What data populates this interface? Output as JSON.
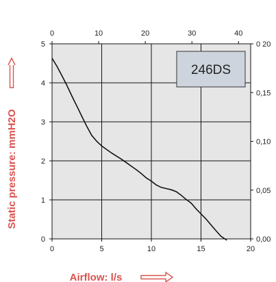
{
  "chart_data": {
    "type": "line",
    "model_label": "246DS",
    "xlabel": "Airflow: l/s",
    "ylabel": "Static pressure: mmH2O",
    "x_bottom": {
      "ticks": [
        0,
        5,
        10,
        15,
        20
      ],
      "labels": [
        "0",
        "5",
        "10",
        "15",
        "20"
      ],
      "range": [
        0,
        20
      ]
    },
    "x_top": {
      "ticks": [
        0,
        10,
        20,
        30,
        40
      ],
      "labels": [
        "0",
        "10",
        "20",
        "30",
        "40"
      ],
      "range": [
        0,
        42.6
      ]
    },
    "y_left": {
      "ticks": [
        0,
        1,
        2,
        3,
        4,
        5
      ],
      "labels": [
        "0",
        "1",
        "2",
        "3",
        "4",
        "5"
      ],
      "range": [
        0,
        5
      ]
    },
    "y_right": {
      "ticks": [
        0,
        0.05,
        0.1,
        0.15,
        0.2
      ],
      "labels": [
        "0,00",
        "0,05",
        "0,10",
        "0,15",
        "0 20"
      ],
      "range": [
        0,
        0.2
      ]
    },
    "grid": true,
    "series": [
      {
        "x": [
          0,
          0.5,
          1.0,
          1.5,
          2.0,
          2.5,
          3.0,
          3.5,
          4.0,
          4.5,
          5.0,
          5.5,
          6.0,
          6.5,
          7.0,
          7.5,
          8.0,
          8.5,
          9.0,
          9.5,
          10.0,
          10.5,
          11.0,
          11.5,
          12.0,
          12.5,
          13.0,
          13.5,
          14.0,
          14.5,
          15.0,
          15.5,
          16.0,
          16.5,
          17.0,
          17.6
        ],
        "y": [
          4.63,
          4.42,
          4.18,
          3.93,
          3.66,
          3.4,
          3.14,
          2.88,
          2.65,
          2.5,
          2.38,
          2.29,
          2.2,
          2.12,
          2.04,
          1.95,
          1.86,
          1.77,
          1.67,
          1.56,
          1.48,
          1.38,
          1.32,
          1.29,
          1.26,
          1.21,
          1.12,
          1.01,
          0.92,
          0.77,
          0.64,
          0.51,
          0.36,
          0.21,
          0.07,
          -0.05
        ]
      }
    ],
    "colors": {
      "plot_bg": "#e6e6e6",
      "grid": "#111111",
      "line": "#111111",
      "label": "#d9534f",
      "model_box_fill": "#cdd4dd",
      "model_box_border": "#333333"
    }
  }
}
